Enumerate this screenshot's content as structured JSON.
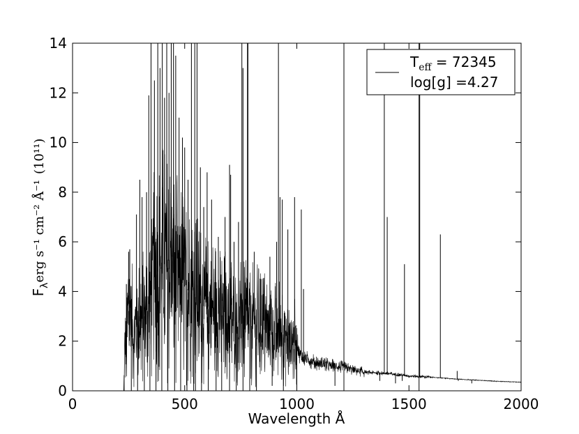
{
  "chart_data": {
    "type": "line",
    "xlabel": "Wavelength Å",
    "ylabel_parts": {
      "base": "F",
      "sub": "λ",
      "unit": "erg s⁻¹ cm⁻² Å⁻¹",
      "scale": "(10¹¹)"
    },
    "xlim": [
      0,
      2000
    ],
    "ylim": [
      0,
      14
    ],
    "x_ticks": [
      0,
      500,
      1000,
      1500,
      2000
    ],
    "y_ticks": [
      0,
      2,
      4,
      6,
      8,
      10,
      12,
      14
    ],
    "grid": false,
    "legend": {
      "placement": "top-right",
      "line1_main": "T",
      "line1_sub": "eff",
      "line1_rest": " = 72345",
      "line2": "log[g] =4.27"
    },
    "series": [
      {
        "line_color": "#000000",
        "profile": [
          [
            228,
            0.0
          ],
          [
            235,
            2.2
          ],
          [
            240,
            1.5
          ],
          [
            250,
            3.5
          ],
          [
            260,
            3.2
          ],
          [
            270,
            2.2
          ],
          [
            280,
            2.5
          ],
          [
            300,
            2.8
          ],
          [
            320,
            3.0
          ],
          [
            340,
            3.5
          ],
          [
            360,
            4.5
          ],
          [
            380,
            4.8
          ],
          [
            400,
            5.2
          ],
          [
            420,
            5.0
          ],
          [
            440,
            4.8
          ],
          [
            460,
            4.7
          ],
          [
            480,
            4.5
          ],
          [
            500,
            4.2
          ],
          [
            520,
            4.0
          ],
          [
            540,
            3.9
          ],
          [
            560,
            3.6
          ],
          [
            600,
            3.3
          ],
          [
            650,
            3.1
          ],
          [
            700,
            2.9
          ],
          [
            750,
            2.7
          ],
          [
            800,
            2.7
          ],
          [
            850,
            2.6
          ],
          [
            900,
            2.3
          ],
          [
            930,
            2.4
          ],
          [
            960,
            2.0
          ],
          [
            1000,
            1.9
          ],
          [
            1010,
            1.6
          ],
          [
            1020,
            1.35
          ],
          [
            1100,
            1.1
          ],
          [
            1200,
            0.95
          ],
          [
            1300,
            0.75
          ],
          [
            1400,
            0.7
          ],
          [
            1500,
            0.6
          ],
          [
            1600,
            0.55
          ],
          [
            1700,
            0.48
          ],
          [
            1800,
            0.43
          ],
          [
            1900,
            0.38
          ],
          [
            2000,
            0.35
          ]
        ],
        "emission_lines": [
          [
            240,
            4.3
          ],
          [
            250,
            5.6
          ],
          [
            255,
            5.7
          ],
          [
            285,
            7.1
          ],
          [
            300,
            8.5
          ],
          [
            310,
            7.8
          ],
          [
            330,
            8.0
          ],
          [
            340,
            11.9
          ],
          [
            350,
            14.0
          ],
          [
            365,
            12.5
          ],
          [
            380,
            14.0
          ],
          [
            390,
            13.0
          ],
          [
            400,
            14.0
          ],
          [
            410,
            11.8
          ],
          [
            420,
            14.0
          ],
          [
            430,
            12.0
          ],
          [
            440,
            14.0
          ],
          [
            450,
            14.0
          ],
          [
            460,
            13.5
          ],
          [
            475,
            11.0
          ],
          [
            490,
            10.2
          ],
          [
            500,
            9.8
          ],
          [
            515,
            8.5
          ],
          [
            530,
            14.0
          ],
          [
            545,
            14.0
          ],
          [
            555,
            14.0
          ],
          [
            570,
            9.0
          ],
          [
            585,
            7.4
          ],
          [
            600,
            8.8
          ],
          [
            620,
            7.7
          ],
          [
            650,
            6.2
          ],
          [
            680,
            7.0
          ],
          [
            700,
            9.1
          ],
          [
            705,
            8.7
          ],
          [
            720,
            6.0
          ],
          [
            740,
            6.8
          ],
          [
            755,
            14.0
          ],
          [
            760,
            13.0
          ],
          [
            780,
            14.0
          ],
          [
            782,
            14.0
          ],
          [
            810,
            5.6
          ],
          [
            840,
            4.5
          ],
          [
            880,
            5.4
          ],
          [
            910,
            6.0
          ],
          [
            918,
            14.0
          ],
          [
            925,
            7.8
          ],
          [
            935,
            7.7
          ],
          [
            960,
            6.5
          ],
          [
            990,
            7.8
          ],
          [
            1020,
            7.3
          ],
          [
            1030,
            4.1
          ],
          [
            1210,
            14.0
          ],
          [
            1390,
            14.0
          ],
          [
            1403,
            7.0
          ],
          [
            1480,
            5.1
          ],
          [
            1545,
            14.0
          ],
          [
            1548,
            14.0
          ],
          [
            1640,
            6.3
          ],
          [
            1715,
            0.8
          ]
        ],
        "absorption_lines": [
          [
            230,
            0.0
          ],
          [
            262,
            0.0
          ],
          [
            290,
            0.0
          ],
          [
            320,
            0.0
          ],
          [
            345,
            0.0
          ],
          [
            372,
            0.0
          ],
          [
            398,
            0.0
          ],
          [
            425,
            0.0
          ],
          [
            455,
            0.0
          ],
          [
            482,
            0.0
          ],
          [
            510,
            0.0
          ],
          [
            540,
            0.0
          ],
          [
            548,
            0.0
          ],
          [
            575,
            0.0
          ],
          [
            605,
            0.0
          ],
          [
            640,
            0.0
          ],
          [
            665,
            0.0
          ],
          [
            700,
            0.0
          ],
          [
            730,
            0.0
          ],
          [
            760,
            0.0
          ],
          [
            790,
            0.0
          ],
          [
            820,
            0.0
          ],
          [
            890,
            0.2
          ],
          [
            940,
            0.0
          ],
          [
            1000,
            0.0
          ],
          [
            1170,
            0.2
          ],
          [
            1210,
            0.0
          ],
          [
            1370,
            0.4
          ],
          [
            1440,
            0.3
          ],
          [
            1470,
            0.4
          ],
          [
            1545,
            0.0
          ],
          [
            1720,
            0.4
          ],
          [
            1780,
            0.3
          ]
        ]
      }
    ]
  }
}
